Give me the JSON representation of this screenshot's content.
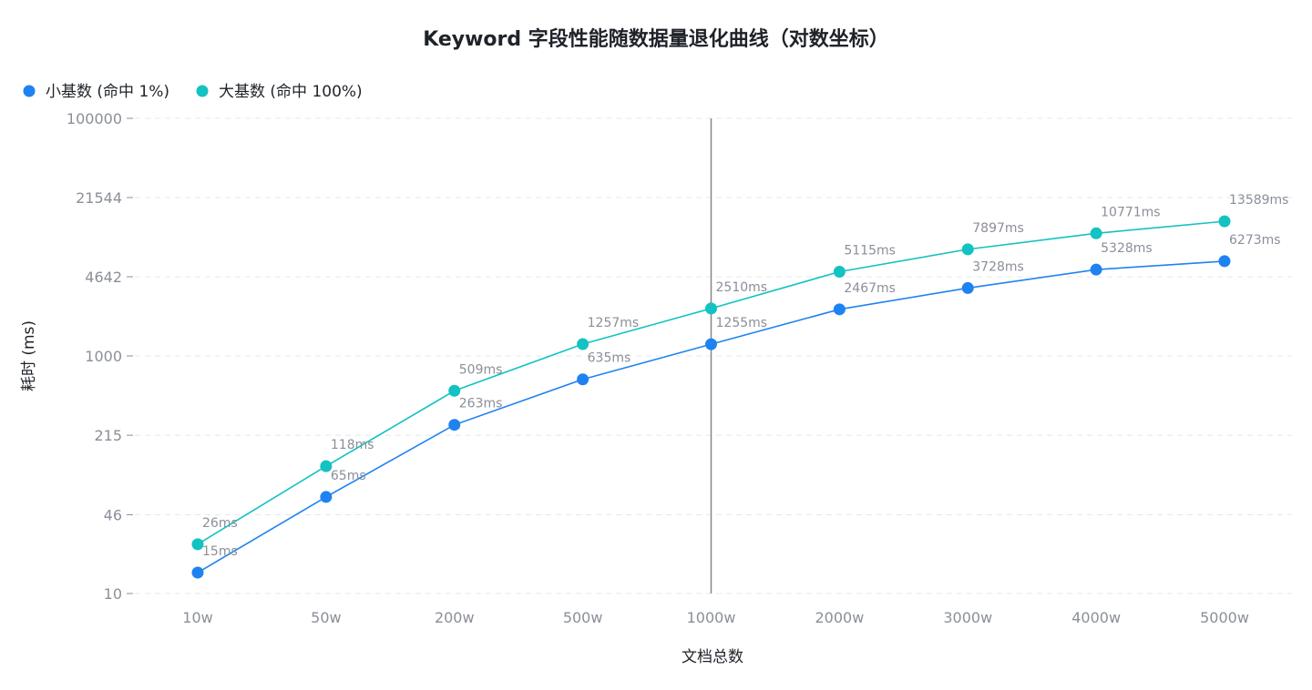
{
  "chart_data": {
    "type": "line",
    "title": "Keyword 字段性能随数据量退化曲线（对数坐标）",
    "xlabel": "文档总数",
    "ylabel": "耗时 (ms)",
    "y_scale": "log",
    "ylim": [
      10,
      100000
    ],
    "y_ticks": [
      "100000",
      "21544",
      "4642",
      "1000",
      "215",
      "46",
      "10"
    ],
    "y_tick_values": [
      100000,
      21544,
      4642,
      1000,
      215,
      46,
      10
    ],
    "categories": [
      "10w",
      "50w",
      "200w",
      "500w",
      "1000w",
      "2000w",
      "3000w",
      "4000w",
      "5000w"
    ],
    "legend_position": "top-left",
    "grid": "horizontal-dashed",
    "highlight_category": "1000w",
    "series": [
      {
        "name": "小基数 (命中 1%)",
        "color": "#1e83f0",
        "values": [
          15,
          65,
          263,
          635,
          1255,
          2467,
          3728,
          5328,
          6273
        ],
        "labels": [
          "15ms",
          "65ms",
          "263ms",
          "635ms",
          "1255ms",
          "2467ms",
          "3728ms",
          "5328ms",
          "6273ms"
        ]
      },
      {
        "name": "大基数 (命中 100%)",
        "color": "#13c2c2",
        "values": [
          26,
          118,
          509,
          1257,
          2510,
          5115,
          7897,
          10771,
          13589
        ],
        "labels": [
          "26ms",
          "118ms",
          "509ms",
          "1257ms",
          "2510ms",
          "5115ms",
          "7897ms",
          "10771ms",
          "13589ms"
        ]
      }
    ]
  }
}
